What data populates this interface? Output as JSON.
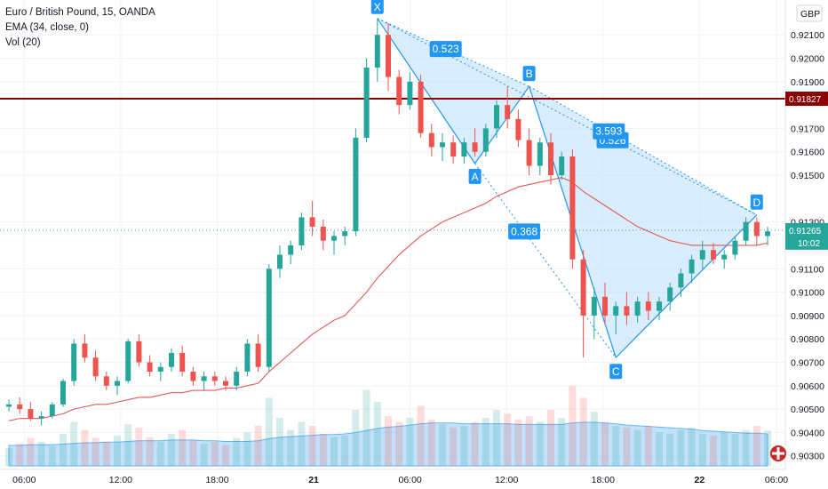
{
  "symbol_line": "Euro / British Pound, 15, OANDA",
  "ema_line": "EMA (34, close, 0)",
  "vol_line": "Vol (20)",
  "currency_badge": "GBP",
  "colors": {
    "up": "#26a69a",
    "down": "#ef5350",
    "ema": "#e05a5a",
    "pattern_fill": "#bbdefb",
    "pattern_line": "#2196f3",
    "point_label": "#2196f3",
    "resistance": "#8b0000",
    "current_tag": "#26a69a",
    "volume_area": "#90caf9"
  },
  "chart_data": {
    "type": "candlestick",
    "title": "Euro / British Pound, 15, OANDA",
    "y_ticks": [
      "0.92100",
      "0.92000",
      "0.91900",
      "0.91700",
      "0.91600",
      "0.91500",
      "0.91300",
      "0.91100",
      "0.91000",
      "0.90900",
      "0.90800",
      "0.90700",
      "0.90600",
      "0.90500",
      "0.90400",
      "0.90300"
    ],
    "x_ticks": [
      {
        "label": "06:00",
        "bold": false
      },
      {
        "label": "12:00",
        "bold": false
      },
      {
        "label": "18:00",
        "bold": false
      },
      {
        "label": "21",
        "bold": true
      },
      {
        "label": "06:00",
        "bold": false
      },
      {
        "label": "12:00",
        "bold": false
      },
      {
        "label": "18:00",
        "bold": false
      },
      {
        "label": "22",
        "bold": true
      },
      {
        "label": "06:00",
        "bold": false
      }
    ],
    "ylim": [
      0.9028,
      0.9223
    ],
    "resistance_level": {
      "value": 0.91827,
      "label": "0.91827"
    },
    "current_price": {
      "value": 0.91265,
      "label": "0.91265",
      "countdown": "10:02"
    },
    "harmonic_pattern": {
      "points": [
        {
          "name": "X",
          "index": 34,
          "price": 0.9217
        },
        {
          "name": "A",
          "index": 43,
          "price": 0.9155
        },
        {
          "name": "B",
          "index": 48,
          "price": 0.9188
        },
        {
          "name": "C",
          "index": 56,
          "price": 0.9072
        },
        {
          "name": "D",
          "index": 69,
          "price": 0.9133
        }
      ],
      "ratios": [
        {
          "label": "0.523",
          "between": [
            "X",
            "B"
          ]
        },
        {
          "label": "0.368",
          "between": [
            "A",
            "C"
          ]
        },
        {
          "label": "0.526",
          "between": [
            "X",
            "D"
          ]
        },
        {
          "label": "3.593",
          "between": [
            "B",
            "D"
          ]
        }
      ]
    },
    "candles": [
      [
        0.9051,
        0.9054,
        0.9049,
        0.9052
      ],
      [
        0.9052,
        0.9055,
        0.9048,
        0.905
      ],
      [
        0.905,
        0.9053,
        0.9045,
        0.9046
      ],
      [
        0.9046,
        0.9049,
        0.9043,
        0.9047
      ],
      [
        0.9047,
        0.9053,
        0.9046,
        0.9052
      ],
      [
        0.9052,
        0.9063,
        0.9051,
        0.9062
      ],
      [
        0.9062,
        0.908,
        0.906,
        0.9078
      ],
      [
        0.9078,
        0.9082,
        0.907,
        0.9072
      ],
      [
        0.9072,
        0.9075,
        0.9062,
        0.9064
      ],
      [
        0.9064,
        0.9066,
        0.9058,
        0.906
      ],
      [
        0.906,
        0.9064,
        0.9056,
        0.9062
      ],
      [
        0.9062,
        0.908,
        0.9061,
        0.9079
      ],
      [
        0.9079,
        0.9082,
        0.9068,
        0.907
      ],
      [
        0.907,
        0.9073,
        0.9064,
        0.9066
      ],
      [
        0.9066,
        0.907,
        0.9062,
        0.9068
      ],
      [
        0.9068,
        0.9076,
        0.9066,
        0.9074
      ],
      [
        0.9074,
        0.9077,
        0.9064,
        0.9066
      ],
      [
        0.9066,
        0.9068,
        0.906,
        0.9062
      ],
      [
        0.9062,
        0.9066,
        0.9058,
        0.9064
      ],
      [
        0.9064,
        0.9066,
        0.906,
        0.9062
      ],
      [
        0.9062,
        0.9064,
        0.9058,
        0.906
      ],
      [
        0.906,
        0.9068,
        0.9058,
        0.9066
      ],
      [
        0.9066,
        0.908,
        0.9064,
        0.9078
      ],
      [
        0.9078,
        0.9082,
        0.9066,
        0.9068
      ],
      [
        0.9068,
        0.9112,
        0.9066,
        0.911
      ],
      [
        0.911,
        0.912,
        0.9106,
        0.9116
      ],
      [
        0.9116,
        0.9122,
        0.9112,
        0.912
      ],
      [
        0.912,
        0.9134,
        0.9118,
        0.9132
      ],
      [
        0.9132,
        0.9139,
        0.9124,
        0.9128
      ],
      [
        0.9128,
        0.9131,
        0.9118,
        0.9122
      ],
      [
        0.9122,
        0.9126,
        0.9116,
        0.9124
      ],
      [
        0.9124,
        0.9128,
        0.912,
        0.9126
      ],
      [
        0.9126,
        0.917,
        0.9124,
        0.9166
      ],
      [
        0.9166,
        0.92,
        0.9164,
        0.9196
      ],
      [
        0.9196,
        0.9217,
        0.919,
        0.921
      ],
      [
        0.921,
        0.9215,
        0.9186,
        0.9192
      ],
      [
        0.9192,
        0.9195,
        0.9176,
        0.918
      ],
      [
        0.918,
        0.9194,
        0.9178,
        0.919
      ],
      [
        0.919,
        0.9193,
        0.9166,
        0.9168
      ],
      [
        0.9168,
        0.9172,
        0.9158,
        0.9162
      ],
      [
        0.9162,
        0.9168,
        0.9156,
        0.9164
      ],
      [
        0.9164,
        0.9167,
        0.9155,
        0.9158
      ],
      [
        0.9158,
        0.9166,
        0.9155,
        0.9164
      ],
      [
        0.9164,
        0.917,
        0.9158,
        0.916
      ],
      [
        0.916,
        0.9172,
        0.9158,
        0.917
      ],
      [
        0.917,
        0.9182,
        0.9166,
        0.918
      ],
      [
        0.918,
        0.9188,
        0.917,
        0.9174
      ],
      [
        0.9174,
        0.9178,
        0.9162,
        0.9165
      ],
      [
        0.9165,
        0.917,
        0.915,
        0.9154
      ],
      [
        0.9154,
        0.9166,
        0.915,
        0.9164
      ],
      [
        0.9164,
        0.9168,
        0.9146,
        0.915
      ],
      [
        0.915,
        0.916,
        0.9148,
        0.9158
      ],
      [
        0.9158,
        0.9161,
        0.911,
        0.9114
      ],
      [
        0.9114,
        0.9118,
        0.9072,
        0.909
      ],
      [
        0.909,
        0.9102,
        0.908,
        0.9098
      ],
      [
        0.9098,
        0.9104,
        0.9086,
        0.909
      ],
      [
        0.909,
        0.9096,
        0.9082,
        0.9094
      ],
      [
        0.9094,
        0.91,
        0.9086,
        0.909
      ],
      [
        0.909,
        0.9098,
        0.9087,
        0.9096
      ],
      [
        0.9096,
        0.91,
        0.9088,
        0.9092
      ],
      [
        0.9092,
        0.9098,
        0.9088,
        0.9096
      ],
      [
        0.9096,
        0.9104,
        0.9092,
        0.9102
      ],
      [
        0.9102,
        0.911,
        0.9098,
        0.9108
      ],
      [
        0.9108,
        0.9116,
        0.9104,
        0.9114
      ],
      [
        0.9114,
        0.9122,
        0.911,
        0.9118
      ],
      [
        0.9118,
        0.9121,
        0.9112,
        0.9114
      ],
      [
        0.9114,
        0.9118,
        0.911,
        0.9116
      ],
      [
        0.9116,
        0.9124,
        0.9114,
        0.9122
      ],
      [
        0.9122,
        0.9132,
        0.912,
        0.913
      ],
      [
        0.913,
        0.9132,
        0.912,
        0.9124
      ],
      [
        0.9124,
        0.9128,
        0.912,
        0.9126
      ]
    ],
    "ema": [
      0.9045,
      0.9046,
      0.9046,
      0.9046,
      0.9047,
      0.9048,
      0.905,
      0.9051,
      0.9052,
      0.9052,
      0.9053,
      0.9054,
      0.9055,
      0.9055,
      0.9056,
      0.9057,
      0.9057,
      0.9058,
      0.9058,
      0.9058,
      0.9059,
      0.9059,
      0.906,
      0.9061,
      0.9066,
      0.907,
      0.9074,
      0.9078,
      0.9082,
      0.9085,
      0.9088,
      0.909,
      0.9095,
      0.91,
      0.9106,
      0.9111,
      0.9116,
      0.912,
      0.9124,
      0.9127,
      0.913,
      0.9132,
      0.9134,
      0.9136,
      0.9138,
      0.9141,
      0.9143,
      0.9145,
      0.9146,
      0.9147,
      0.9148,
      0.9149,
      0.9147,
      0.9143,
      0.914,
      0.9137,
      0.9134,
      0.9131,
      0.9128,
      0.9126,
      0.9124,
      0.9122,
      0.9121,
      0.912,
      0.912,
      0.912,
      0.912,
      0.912,
      0.912,
      0.912,
      0.9121
    ],
    "volume": [
      0.22,
      0.28,
      0.35,
      0.3,
      0.25,
      0.4,
      0.55,
      0.45,
      0.35,
      0.3,
      0.38,
      0.52,
      0.48,
      0.36,
      0.3,
      0.4,
      0.45,
      0.32,
      0.28,
      0.3,
      0.26,
      0.35,
      0.42,
      0.5,
      0.85,
      0.6,
      0.45,
      0.55,
      0.5,
      0.4,
      0.36,
      0.38,
      0.7,
      0.95,
      0.8,
      0.62,
      0.55,
      0.6,
      0.75,
      0.58,
      0.52,
      0.48,
      0.5,
      0.55,
      0.6,
      0.7,
      0.65,
      0.58,
      0.62,
      0.55,
      0.7,
      0.6,
      1.0,
      0.85,
      0.68,
      0.55,
      0.5,
      0.48,
      0.45,
      0.5,
      0.42,
      0.4,
      0.45,
      0.48,
      0.4,
      0.38,
      0.42,
      0.4,
      0.45,
      0.5,
      0.44
    ],
    "volume_ma": [
      0.3,
      0.3,
      0.31,
      0.31,
      0.31,
      0.32,
      0.33,
      0.34,
      0.34,
      0.35,
      0.35,
      0.36,
      0.37,
      0.37,
      0.37,
      0.38,
      0.38,
      0.38,
      0.37,
      0.37,
      0.36,
      0.36,
      0.36,
      0.37,
      0.4,
      0.42,
      0.43,
      0.44,
      0.45,
      0.46,
      0.46,
      0.47,
      0.49,
      0.52,
      0.55,
      0.57,
      0.58,
      0.6,
      0.62,
      0.63,
      0.63,
      0.63,
      0.62,
      0.62,
      0.62,
      0.62,
      0.62,
      0.61,
      0.61,
      0.61,
      0.61,
      0.61,
      0.63,
      0.64,
      0.64,
      0.63,
      0.62,
      0.6,
      0.59,
      0.58,
      0.57,
      0.56,
      0.55,
      0.54,
      0.52,
      0.51,
      0.5,
      0.49,
      0.48,
      0.48,
      0.47
    ]
  }
}
